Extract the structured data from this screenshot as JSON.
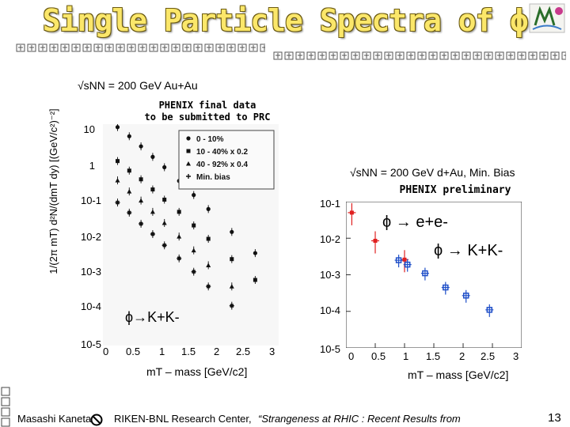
{
  "slide_title": "Single Particle Spectra of ϕ",
  "page_number": "13",
  "colors": {
    "title": "#fbe76a",
    "title_outline": "#6b5a12",
    "ee": "#e02020",
    "kk": "#1f4fc8"
  },
  "left_plot": {
    "header": "√sNN = 200 GeV Au+Au",
    "note_line1": "PHENIX final data",
    "note_line2": "to be submitted to PRC",
    "ylabel": "1/(2π mT) d²N/(dmT dy) [(GeV/c²)⁻²]",
    "y_ticks": [
      "10",
      "1",
      "10-1",
      "10-2",
      "10-3",
      "10-4",
      "10-5"
    ],
    "x_ticks": [
      "0",
      "0.5",
      "1",
      "1.5",
      "2",
      "2.5",
      "3"
    ],
    "xlabel": "mT – mass [GeV/c2]",
    "channel_label": "ϕ→K+K-",
    "legend": [
      "0 - 10%",
      "10 - 40% x 0.2",
      "40 - 92% x 0.4",
      "Min. bias"
    ]
  },
  "right_plot": {
    "header": "√sNN = 200 GeV d+Au, Min. Bias",
    "note": "PHENIX preliminary",
    "y_ticks": [
      "10-1",
      "10-2",
      "10-3",
      "10-4",
      "10-5"
    ],
    "x_ticks": [
      "0",
      "0.5",
      "1",
      "1.5",
      "2",
      "2.5",
      "3"
    ],
    "xlabel": "mT – mass [GeV/c2]",
    "label_ee": "ϕ → e+e-",
    "label_kk": "ϕ → K+K-"
  },
  "chart_data": [
    {
      "type": "scatter",
      "title": "√sNN = 200 GeV Au+Au",
      "xlabel": "mT – mass [GeV/c2]",
      "ylabel": "1/(2π mT) d²N/(dmT dy) [(GeV/c²)⁻²]",
      "xlim": [
        0,
        3
      ],
      "ylim_log10": [
        -5,
        1
      ],
      "series": [
        {
          "name": "0 - 10%",
          "x": [
            0.25,
            0.45,
            0.65,
            0.85,
            1.05,
            1.3,
            1.55,
            1.8,
            2.2,
            2.6
          ],
          "y": [
            8.3,
            4.7,
            2.5,
            1.3,
            0.68,
            0.29,
            0.12,
            0.05,
            0.012,
            0.0032
          ]
        },
        {
          "name": "10 - 40% x 0.2",
          "x": [
            0.25,
            0.45,
            0.65,
            0.85,
            1.05,
            1.3,
            1.55,
            1.8,
            2.2,
            2.6
          ],
          "y": [
            1.0,
            0.55,
            0.32,
            0.17,
            0.09,
            0.042,
            0.018,
            0.0078,
            0.0022,
            0.0006
          ]
        },
        {
          "name": "40 - 92% x 0.4",
          "x": [
            0.25,
            0.45,
            0.65,
            0.85,
            1.05,
            1.3,
            1.55,
            1.8,
            2.2
          ],
          "y": [
            0.3,
            0.15,
            0.085,
            0.042,
            0.021,
            0.009,
            0.0038,
            0.0015,
            0.0004
          ]
        },
        {
          "name": "Min. bias",
          "x": [
            0.25,
            0.45,
            0.65,
            0.85,
            1.05,
            1.3,
            1.55,
            1.8,
            2.2
          ],
          "y": [
            0.075,
            0.04,
            0.02,
            0.0105,
            0.0052,
            0.0023,
            0.001,
            0.0004,
            0.00012
          ]
        }
      ]
    },
    {
      "type": "scatter",
      "title": "√sNN = 200 GeV d+Au, Min. Bias",
      "xlabel": "mT – mass [GeV/c2]",
      "ylabel": "",
      "xlim": [
        0,
        3
      ],
      "ylim_log10": [
        -5,
        -1
      ],
      "series": [
        {
          "name": "ϕ → e+e-",
          "x": [
            0.1,
            0.5,
            1.0
          ],
          "y": [
            0.05,
            0.0085,
            0.0026
          ]
        },
        {
          "name": "ϕ → K+K-",
          "x": [
            0.9,
            1.05,
            1.35,
            1.7,
            2.05,
            2.45
          ],
          "y": [
            0.0025,
            0.0019,
            0.0011,
            0.00045,
            0.00027,
            0.00011
          ]
        }
      ]
    }
  ],
  "footer": {
    "author": "Masashi Kaneta",
    "affiliation": "RIKEN-BNL Research Center,",
    "talk": "“Strangeness at RHIC : Recent Results from"
  }
}
